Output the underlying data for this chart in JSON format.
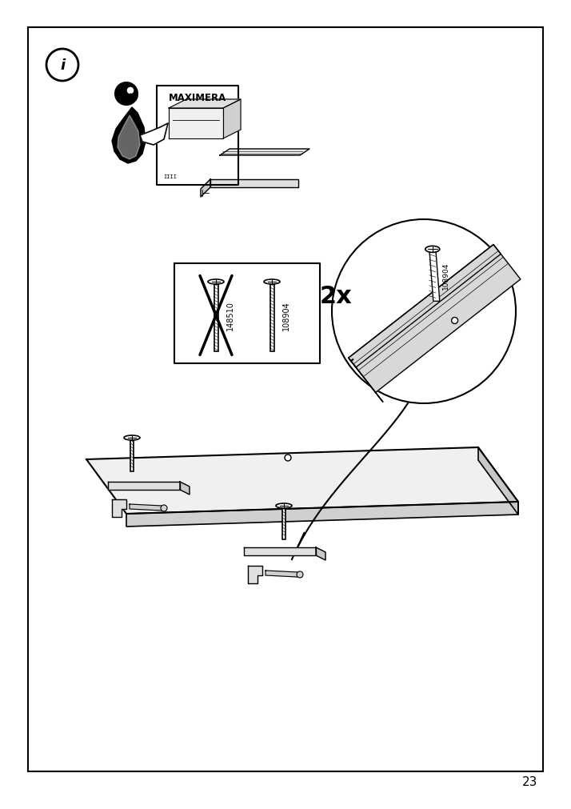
{
  "page_number": "23",
  "bg": "#ffffff",
  "border": "#000000",
  "info_text": "i",
  "maximera_text": "MAXIMERA",
  "screw_label_1": "148510",
  "screw_label_2": "108904",
  "qty_text": "2x",
  "detail_screw_label": "108904"
}
